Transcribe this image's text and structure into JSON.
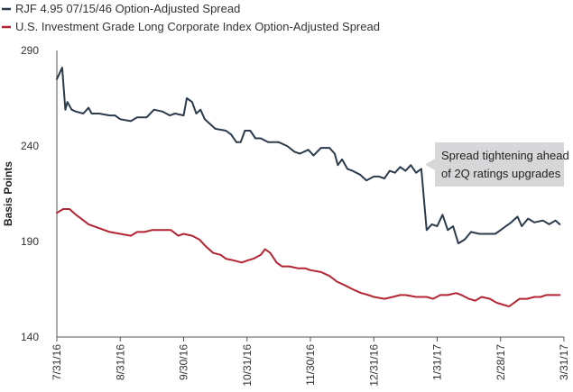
{
  "chart_data": {
    "type": "line",
    "title": "",
    "xlabel": "",
    "ylabel": "Basis Points",
    "ylim": [
      140,
      290
    ],
    "yticks": [
      140,
      190,
      240,
      290
    ],
    "xlim": [
      0,
      48
    ],
    "xticks": [
      {
        "x": 0,
        "label": "7/31/16"
      },
      {
        "x": 6,
        "label": "8/31/16"
      },
      {
        "x": 12,
        "label": "9/30/16"
      },
      {
        "x": 18,
        "label": "10/31/16"
      },
      {
        "x": 24,
        "label": "11/30/16"
      },
      {
        "x": 30,
        "label": "12/31/16"
      },
      {
        "x": 36,
        "label": "1/31/17"
      },
      {
        "x": 42,
        "label": "2/28/17"
      },
      {
        "x": 48,
        "label": "3/31/17"
      }
    ],
    "series": [
      {
        "name": "RJF 4.95 07/15/46 Option-Adjusted Spread",
        "color": "#2b3b4c",
        "points": [
          [
            0,
            275
          ],
          [
            0.5,
            281
          ],
          [
            0.8,
            259
          ],
          [
            1.0,
            263
          ],
          [
            1.4,
            259
          ],
          [
            1.8,
            258
          ],
          [
            2.5,
            257
          ],
          [
            3.0,
            260
          ],
          [
            3.3,
            257
          ],
          [
            4,
            257
          ],
          [
            5,
            256
          ],
          [
            5.5,
            256
          ],
          [
            6,
            254
          ],
          [
            7,
            253
          ],
          [
            7.6,
            255
          ],
          [
            8.5,
            255
          ],
          [
            9.2,
            259
          ],
          [
            10,
            258
          ],
          [
            10.7,
            256
          ],
          [
            11.2,
            257
          ],
          [
            12,
            256
          ],
          [
            12.3,
            265
          ],
          [
            12.8,
            263
          ],
          [
            13.2,
            257
          ],
          [
            13.6,
            259
          ],
          [
            14,
            254
          ],
          [
            15,
            249
          ],
          [
            16,
            248
          ],
          [
            16.5,
            246
          ],
          [
            17,
            242
          ],
          [
            17.4,
            242
          ],
          [
            17.8,
            248
          ],
          [
            18.3,
            248
          ],
          [
            18.8,
            244
          ],
          [
            19.3,
            244
          ],
          [
            20,
            242
          ],
          [
            21,
            242
          ],
          [
            21.8,
            240
          ],
          [
            22.5,
            237
          ],
          [
            23,
            236
          ],
          [
            23.8,
            238
          ],
          [
            24.3,
            235
          ],
          [
            25,
            239
          ],
          [
            25.8,
            239
          ],
          [
            26.3,
            236
          ],
          [
            26.6,
            230
          ],
          [
            27,
            233
          ],
          [
            27.5,
            228
          ],
          [
            28,
            227
          ],
          [
            28.7,
            225
          ],
          [
            29.3,
            222
          ],
          [
            30,
            224
          ],
          [
            30.5,
            224
          ],
          [
            31,
            223
          ],
          [
            31.5,
            227
          ],
          [
            32,
            226
          ],
          [
            32.5,
            229
          ],
          [
            33,
            227
          ],
          [
            33.5,
            230
          ],
          [
            34,
            226
          ],
          [
            34.5,
            228
          ],
          [
            35.0,
            196
          ],
          [
            35.5,
            199
          ],
          [
            36,
            198
          ],
          [
            36.5,
            204
          ],
          [
            37,
            196
          ],
          [
            37.5,
            198
          ],
          [
            38,
            189
          ],
          [
            38.6,
            191
          ],
          [
            39.2,
            195
          ],
          [
            40,
            194
          ],
          [
            40.5,
            194
          ],
          [
            41.5,
            194
          ],
          [
            42,
            196
          ],
          [
            42.5,
            198
          ],
          [
            43,
            200
          ],
          [
            43.6,
            203
          ],
          [
            44,
            198
          ],
          [
            44.6,
            202
          ],
          [
            45.2,
            200
          ],
          [
            46,
            201
          ],
          [
            46.6,
            199
          ],
          [
            47.2,
            201
          ],
          [
            47.6,
            199
          ]
        ]
      },
      {
        "name": "U.S. Investment Grade Long Corporate Index Option-Adjusted Spread",
        "color": "#b32532",
        "points": [
          [
            0,
            205
          ],
          [
            0.6,
            207
          ],
          [
            1.2,
            207
          ],
          [
            1.8,
            204
          ],
          [
            2.3,
            202
          ],
          [
            3,
            199
          ],
          [
            4,
            197
          ],
          [
            5,
            195
          ],
          [
            6,
            194
          ],
          [
            7,
            193
          ],
          [
            7.6,
            195
          ],
          [
            8.3,
            195
          ],
          [
            9,
            196
          ],
          [
            10,
            196
          ],
          [
            10.8,
            196
          ],
          [
            11.5,
            193
          ],
          [
            12,
            194
          ],
          [
            12.8,
            193
          ],
          [
            13.5,
            191
          ],
          [
            14,
            188
          ],
          [
            14.8,
            184
          ],
          [
            15.5,
            183
          ],
          [
            16,
            181
          ],
          [
            16.8,
            180
          ],
          [
            17.5,
            179
          ],
          [
            18,
            180
          ],
          [
            18.6,
            181
          ],
          [
            19.3,
            183
          ],
          [
            19.7,
            186
          ],
          [
            20.2,
            184
          ],
          [
            20.8,
            179
          ],
          [
            21.3,
            177
          ],
          [
            22,
            177
          ],
          [
            22.8,
            176
          ],
          [
            23.5,
            176
          ],
          [
            24,
            175
          ],
          [
            25,
            174
          ],
          [
            25.8,
            172
          ],
          [
            26.5,
            169
          ],
          [
            27.3,
            167
          ],
          [
            28,
            165
          ],
          [
            28.8,
            163
          ],
          [
            29.5,
            162
          ],
          [
            30,
            161
          ],
          [
            31,
            160
          ],
          [
            31.8,
            161
          ],
          [
            32.5,
            162
          ],
          [
            33,
            162
          ],
          [
            34,
            161
          ],
          [
            35,
            161
          ],
          [
            35.6,
            160
          ],
          [
            36.3,
            162
          ],
          [
            37,
            162
          ],
          [
            37.8,
            163
          ],
          [
            38.3,
            162
          ],
          [
            39,
            160
          ],
          [
            39.6,
            159
          ],
          [
            40.2,
            161
          ],
          [
            41,
            160
          ],
          [
            41.6,
            158
          ],
          [
            42.2,
            157
          ],
          [
            42.8,
            156
          ],
          [
            43.3,
            158
          ],
          [
            43.8,
            160
          ],
          [
            44.5,
            160
          ],
          [
            45.2,
            161
          ],
          [
            45.8,
            161
          ],
          [
            46.3,
            162
          ],
          [
            47,
            162
          ],
          [
            47.6,
            162
          ]
        ]
      }
    ],
    "annotations": [
      {
        "lines": [
          "Spread tightening ahead",
          "of 2Q ratings upgrades"
        ],
        "anchor_x": 35,
        "anchor_y": 226
      }
    ]
  }
}
